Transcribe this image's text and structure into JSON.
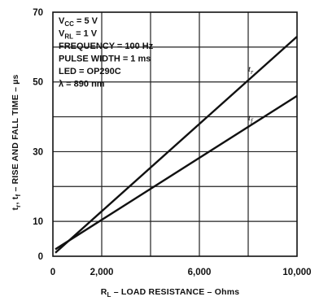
{
  "chart_data": {
    "type": "line",
    "title": "",
    "xlabel": "R_L – LOAD RESISTANCE – Ohms",
    "xlabel_parts": {
      "main": "R",
      "sub": "L",
      "rest": " – LOAD RESISTANCE – Ohms"
    },
    "ylabel": "t_r, t_f – RISE AND FALL TIME – µs",
    "ylabel_parts": {
      "a": "t",
      "a_sub": "r",
      "b": ", t",
      "b_sub": "f",
      "rest": " – RISE AND FALL TIME – µs"
    },
    "xlim": [
      0,
      10000
    ],
    "ylim": [
      0,
      70
    ],
    "x_ticks": [
      0,
      2000,
      6000,
      10000
    ],
    "x_tick_labels": [
      "0",
      "2,000",
      "6,000",
      "10,000"
    ],
    "x_grid": [
      2000,
      4000,
      6000,
      8000
    ],
    "y_ticks": [
      0,
      10,
      30,
      50,
      70
    ],
    "y_tick_labels": [
      "0",
      "10",
      "30",
      "50",
      "70"
    ],
    "y_grid": [
      10,
      20,
      30,
      40,
      50,
      60
    ],
    "grid": true,
    "series": [
      {
        "name": "tr",
        "label_main": "t",
        "label_sub": "r",
        "x": [
          100,
          10000
        ],
        "y": [
          1,
          63
        ],
        "label_at": [
          8000,
          53
        ]
      },
      {
        "name": "tf",
        "label_main": "t",
        "label_sub": "f",
        "x": [
          100,
          10000
        ],
        "y": [
          2,
          46
        ],
        "label_at": [
          8000,
          39
        ]
      }
    ],
    "conditions": [
      {
        "main": "V",
        "sub": "CC",
        "rest": " = 5 V"
      },
      {
        "main": "V",
        "sub": "RL",
        "rest": " = 1 V"
      },
      {
        "main": "FREQUENCY = 100 Hz",
        "sub": "",
        "rest": ""
      },
      {
        "main": "PULSE WIDTH = 1 ms",
        "sub": "",
        "rest": ""
      },
      {
        "main": "LED = OP290C",
        "sub": "",
        "rest": ""
      },
      {
        "main": "λ = 890 nm",
        "sub": "",
        "rest": ""
      }
    ]
  }
}
